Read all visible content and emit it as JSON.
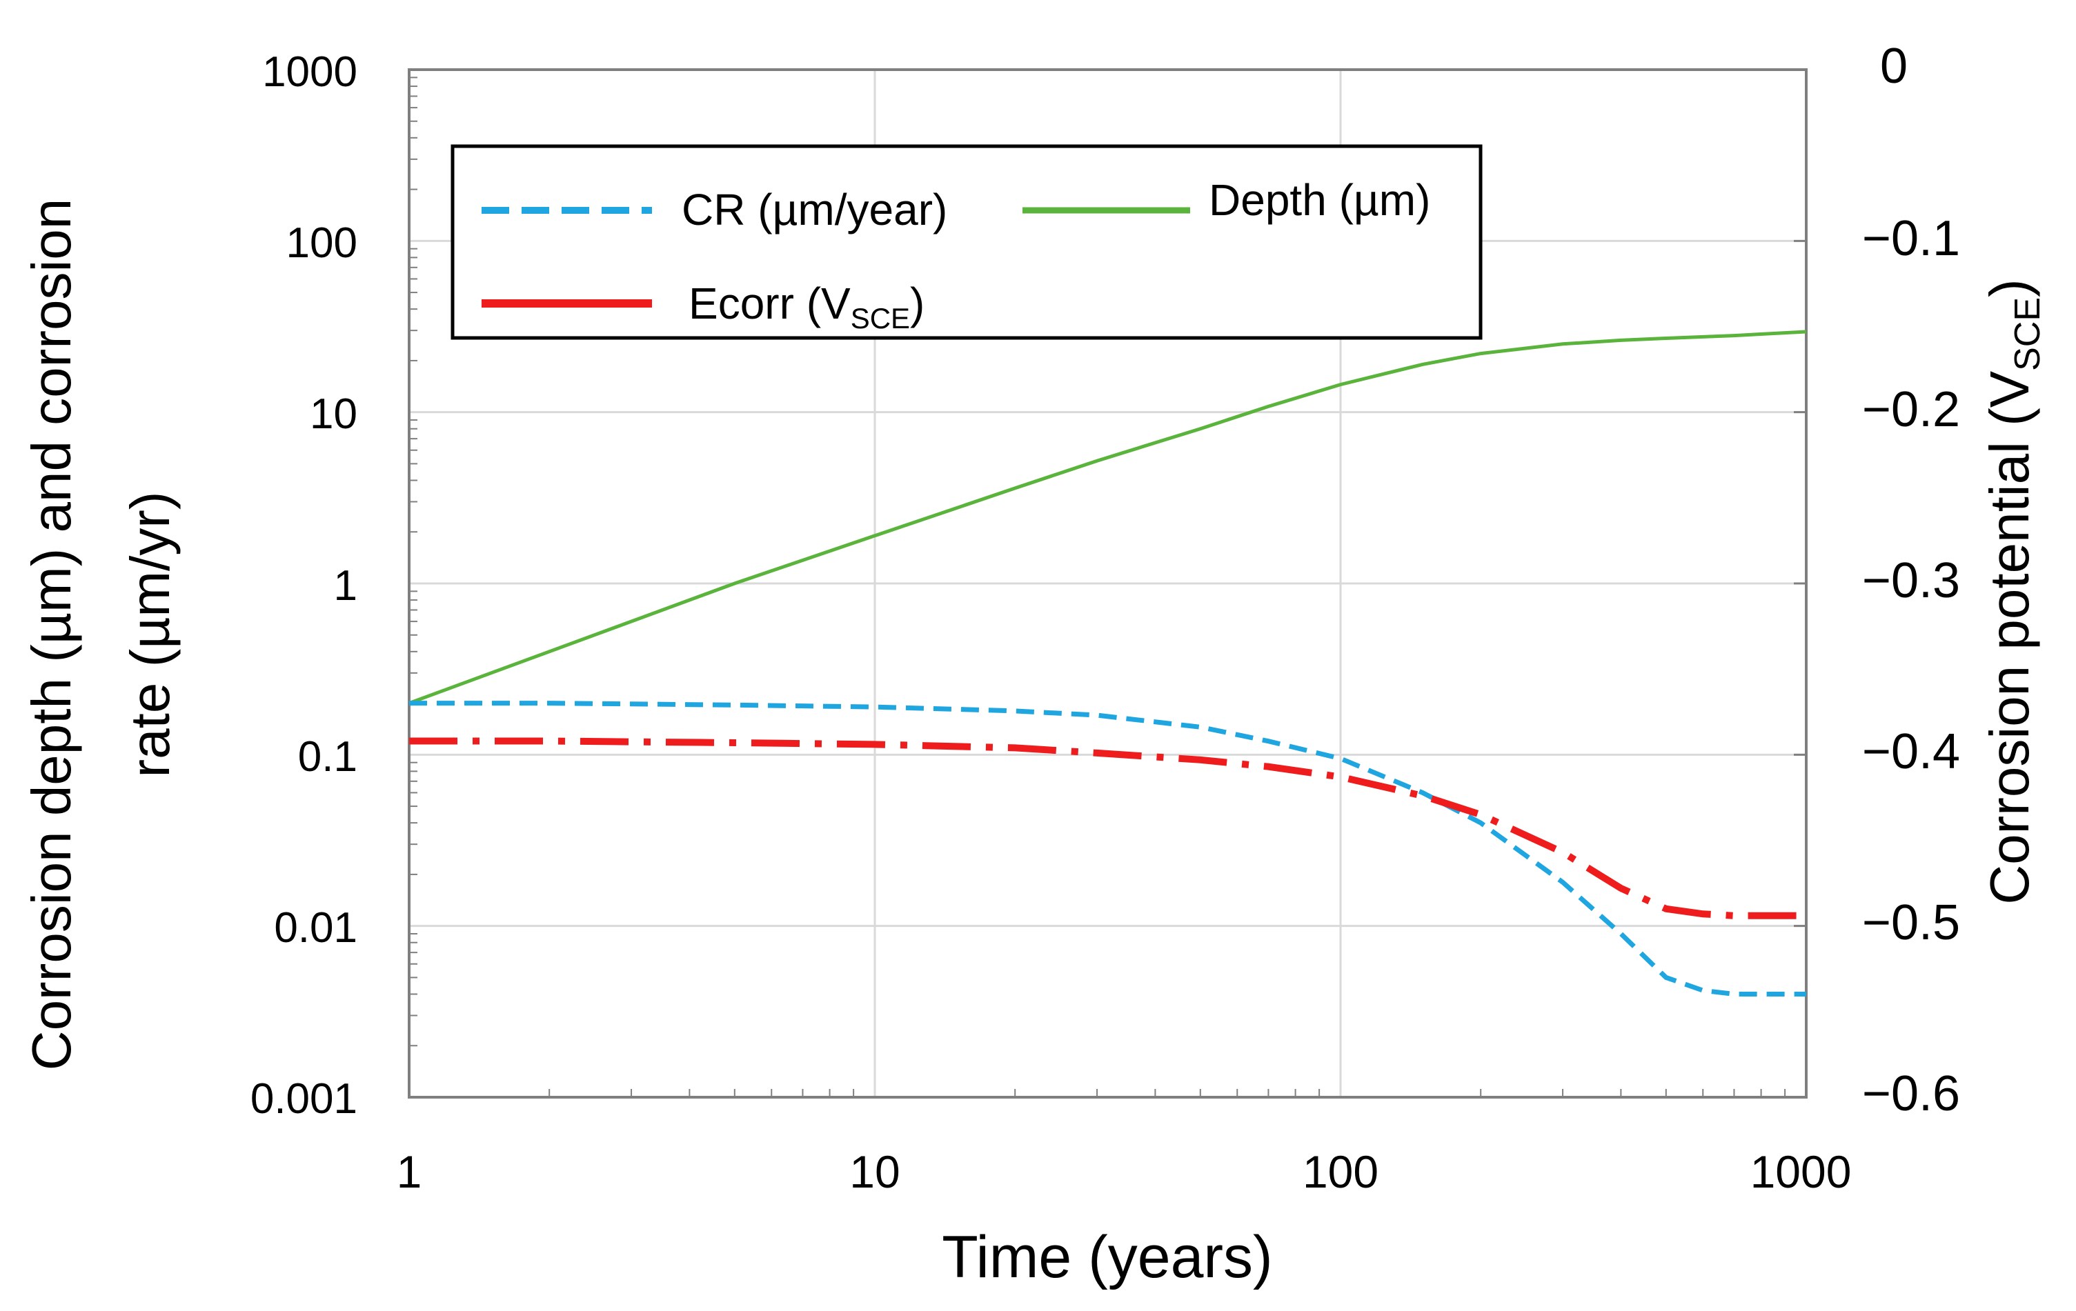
{
  "chart_data": {
    "type": "line",
    "x_scale": "log",
    "y_scale": "log",
    "xlim": [
      1,
      1000
    ],
    "ylim": [
      0.001,
      1000
    ],
    "y2lim": [
      -0.6,
      0
    ],
    "xlabel": "Time (years)",
    "ylabel_line1": "Corrosion depth (µm) and corrosion",
    "ylabel_line2": "rate (µm/yr)",
    "y2label_main": "Corrosion potential (V",
    "y2label_sub": "SCE",
    "y2label_close": ")",
    "x_ticks": [
      1,
      10,
      100,
      1000
    ],
    "x_tick_labels": [
      "1",
      "10",
      "100",
      "1000"
    ],
    "y_ticks": [
      1000,
      100,
      10,
      1,
      0.1,
      0.01,
      0.001
    ],
    "y_tick_labels": [
      "1000",
      "100",
      "10",
      "1",
      "0.1",
      "0.01",
      "0.001"
    ],
    "y2_ticks": [
      0,
      -0.1,
      -0.2,
      -0.3,
      -0.4,
      -0.5,
      -0.6
    ],
    "y2_tick_labels": [
      "0",
      "−0.1",
      "−0.2",
      "−0.3",
      "−0.4",
      "−0.5",
      "−0.6"
    ],
    "grid": true,
    "legend_position": "top-left",
    "series": [
      {
        "name": "CR (µm/year)",
        "axis": "left",
        "color": "#1fa6e0",
        "dash": "dashed",
        "x": [
          1,
          2,
          5,
          10,
          20,
          30,
          50,
          70,
          100,
          150,
          200,
          300,
          400,
          500,
          600,
          700,
          800,
          1000
        ],
        "y": [
          0.2,
          0.2,
          0.195,
          0.19,
          0.18,
          0.17,
          0.145,
          0.12,
          0.095,
          0.06,
          0.04,
          0.018,
          0.009,
          0.005,
          0.0042,
          0.004,
          0.004,
          0.004
        ]
      },
      {
        "name": "Depth (µm)",
        "axis": "left",
        "color": "#5ab43c",
        "dash": "solid",
        "x": [
          1,
          2,
          5,
          10,
          20,
          30,
          50,
          70,
          100,
          150,
          200,
          300,
          400,
          500,
          700,
          1000
        ],
        "y": [
          0.2,
          0.4,
          1.0,
          1.9,
          3.6,
          5.2,
          8.0,
          10.8,
          14.5,
          19.0,
          22.0,
          25.0,
          26.3,
          27.0,
          28.0,
          29.5
        ]
      },
      {
        "name": "Ecorr",
        "name_sub": "SCE",
        "axis": "right",
        "color": "#ee1c1c",
        "dash": "dash-dot",
        "x": [
          1,
          2,
          5,
          10,
          20,
          30,
          50,
          70,
          100,
          150,
          200,
          300,
          400,
          500,
          600,
          700,
          1000
        ],
        "y": [
          -0.392,
          -0.392,
          -0.393,
          -0.394,
          -0.396,
          -0.399,
          -0.403,
          -0.407,
          -0.413,
          -0.424,
          -0.435,
          -0.457,
          -0.478,
          -0.49,
          -0.493,
          -0.494,
          -0.494
        ]
      }
    ]
  },
  "legend": {
    "cr_label": "CR (µm/year)",
    "depth_label": "Depth (µm)",
    "ecorr_label": "Ecorr (V",
    "ecorr_sub": "SCE",
    "ecorr_close": ")"
  }
}
